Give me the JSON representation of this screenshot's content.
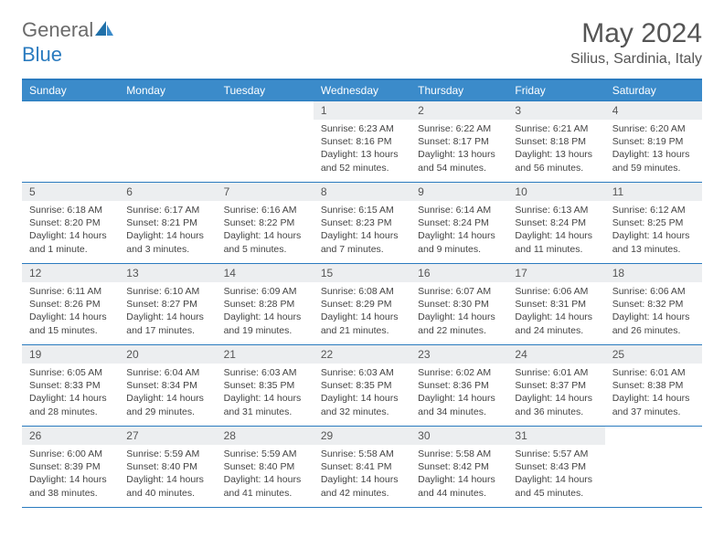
{
  "logo": {
    "part1": "General",
    "part2": "Blue"
  },
  "title": "May 2024",
  "location": "Silius, Sardinia, Italy",
  "colors": {
    "header_bar": "#3b8bca",
    "border": "#2a7bbf",
    "daynum_bg": "#eceef0",
    "text": "#444444",
    "title_text": "#555555",
    "logo_gray": "#6b6b6b",
    "logo_blue": "#2a7bbf"
  },
  "weekdays": [
    "Sunday",
    "Monday",
    "Tuesday",
    "Wednesday",
    "Thursday",
    "Friday",
    "Saturday"
  ],
  "weeks": [
    [
      null,
      null,
      null,
      {
        "n": "1",
        "sr": "6:23 AM",
        "ss": "8:16 PM",
        "dl": "13 hours and 52 minutes."
      },
      {
        "n": "2",
        "sr": "6:22 AM",
        "ss": "8:17 PM",
        "dl": "13 hours and 54 minutes."
      },
      {
        "n": "3",
        "sr": "6:21 AM",
        "ss": "8:18 PM",
        "dl": "13 hours and 56 minutes."
      },
      {
        "n": "4",
        "sr": "6:20 AM",
        "ss": "8:19 PM",
        "dl": "13 hours and 59 minutes."
      }
    ],
    [
      {
        "n": "5",
        "sr": "6:18 AM",
        "ss": "8:20 PM",
        "dl": "14 hours and 1 minute."
      },
      {
        "n": "6",
        "sr": "6:17 AM",
        "ss": "8:21 PM",
        "dl": "14 hours and 3 minutes."
      },
      {
        "n": "7",
        "sr": "6:16 AM",
        "ss": "8:22 PM",
        "dl": "14 hours and 5 minutes."
      },
      {
        "n": "8",
        "sr": "6:15 AM",
        "ss": "8:23 PM",
        "dl": "14 hours and 7 minutes."
      },
      {
        "n": "9",
        "sr": "6:14 AM",
        "ss": "8:24 PM",
        "dl": "14 hours and 9 minutes."
      },
      {
        "n": "10",
        "sr": "6:13 AM",
        "ss": "8:24 PM",
        "dl": "14 hours and 11 minutes."
      },
      {
        "n": "11",
        "sr": "6:12 AM",
        "ss": "8:25 PM",
        "dl": "14 hours and 13 minutes."
      }
    ],
    [
      {
        "n": "12",
        "sr": "6:11 AM",
        "ss": "8:26 PM",
        "dl": "14 hours and 15 minutes."
      },
      {
        "n": "13",
        "sr": "6:10 AM",
        "ss": "8:27 PM",
        "dl": "14 hours and 17 minutes."
      },
      {
        "n": "14",
        "sr": "6:09 AM",
        "ss": "8:28 PM",
        "dl": "14 hours and 19 minutes."
      },
      {
        "n": "15",
        "sr": "6:08 AM",
        "ss": "8:29 PM",
        "dl": "14 hours and 21 minutes."
      },
      {
        "n": "16",
        "sr": "6:07 AM",
        "ss": "8:30 PM",
        "dl": "14 hours and 22 minutes."
      },
      {
        "n": "17",
        "sr": "6:06 AM",
        "ss": "8:31 PM",
        "dl": "14 hours and 24 minutes."
      },
      {
        "n": "18",
        "sr": "6:06 AM",
        "ss": "8:32 PM",
        "dl": "14 hours and 26 minutes."
      }
    ],
    [
      {
        "n": "19",
        "sr": "6:05 AM",
        "ss": "8:33 PM",
        "dl": "14 hours and 28 minutes."
      },
      {
        "n": "20",
        "sr": "6:04 AM",
        "ss": "8:34 PM",
        "dl": "14 hours and 29 minutes."
      },
      {
        "n": "21",
        "sr": "6:03 AM",
        "ss": "8:35 PM",
        "dl": "14 hours and 31 minutes."
      },
      {
        "n": "22",
        "sr": "6:03 AM",
        "ss": "8:35 PM",
        "dl": "14 hours and 32 minutes."
      },
      {
        "n": "23",
        "sr": "6:02 AM",
        "ss": "8:36 PM",
        "dl": "14 hours and 34 minutes."
      },
      {
        "n": "24",
        "sr": "6:01 AM",
        "ss": "8:37 PM",
        "dl": "14 hours and 36 minutes."
      },
      {
        "n": "25",
        "sr": "6:01 AM",
        "ss": "8:38 PM",
        "dl": "14 hours and 37 minutes."
      }
    ],
    [
      {
        "n": "26",
        "sr": "6:00 AM",
        "ss": "8:39 PM",
        "dl": "14 hours and 38 minutes."
      },
      {
        "n": "27",
        "sr": "5:59 AM",
        "ss": "8:40 PM",
        "dl": "14 hours and 40 minutes."
      },
      {
        "n": "28",
        "sr": "5:59 AM",
        "ss": "8:40 PM",
        "dl": "14 hours and 41 minutes."
      },
      {
        "n": "29",
        "sr": "5:58 AM",
        "ss": "8:41 PM",
        "dl": "14 hours and 42 minutes."
      },
      {
        "n": "30",
        "sr": "5:58 AM",
        "ss": "8:42 PM",
        "dl": "14 hours and 44 minutes."
      },
      {
        "n": "31",
        "sr": "5:57 AM",
        "ss": "8:43 PM",
        "dl": "14 hours and 45 minutes."
      },
      null
    ]
  ],
  "labels": {
    "sunrise": "Sunrise:",
    "sunset": "Sunset:",
    "daylight": "Daylight:"
  }
}
